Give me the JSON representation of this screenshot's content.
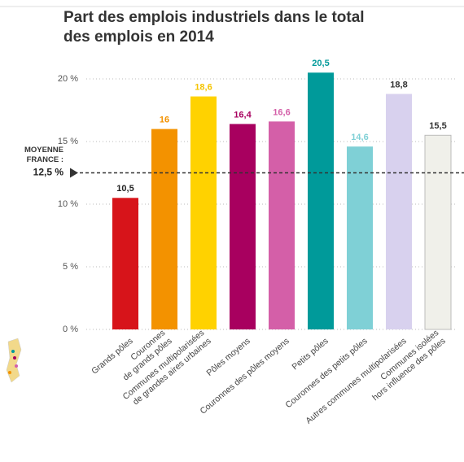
{
  "chart_data": {
    "type": "bar",
    "title": [
      "Part des emplois industriels dans le total",
      "des emplois en 2014"
    ],
    "categories": [
      [
        "Grands pôles"
      ],
      [
        "Couronnes",
        "de grands pôles"
      ],
      [
        "Communes multipolarisées",
        "de grandes aires urbaines"
      ],
      [
        "Pôles moyens"
      ],
      [
        "Couronnes des pôles moyens"
      ],
      [
        "Petits pôles"
      ],
      [
        "Couronnes des petits pôles"
      ],
      [
        "Autres communes multipolarisées"
      ],
      [
        "Communes isolées",
        "hors influence des pôles"
      ]
    ],
    "values": [
      10.5,
      16,
      18.6,
      16.4,
      16.6,
      20.5,
      14.6,
      18.8,
      15.5
    ],
    "value_labels": [
      "10,5",
      "16",
      "18,6",
      "16,4",
      "16,6",
      "20,5",
      "14,6",
      "18,8",
      "15,5"
    ],
    "colors": [
      "#d7141a",
      "#f39200",
      "#ffd200",
      "#a8005f",
      "#d45fa8",
      "#009a9a",
      "#7fd0d6",
      "#d8d1ee",
      "#f0f0ea"
    ],
    "label_colors": [
      "#222222",
      "#f39200",
      "#f5c400",
      "#a8005f",
      "#d45fa8",
      "#009a9a",
      "#7fd0d6",
      "#333333",
      "#333333"
    ],
    "ylim": [
      0,
      20
    ],
    "yticks": [
      {
        "value": 0,
        "label": "0 %"
      },
      {
        "value": 5,
        "label": "5 %"
      },
      {
        "value": 10,
        "label": "10 %"
      },
      {
        "value": 15,
        "label": "15 %"
      },
      {
        "value": 20,
        "label": "20 %"
      }
    ],
    "grid": true,
    "reference": {
      "value": 12.5,
      "label": [
        "MOYENNE",
        "FRANCE :"
      ],
      "value_label": "12,5 %"
    }
  }
}
